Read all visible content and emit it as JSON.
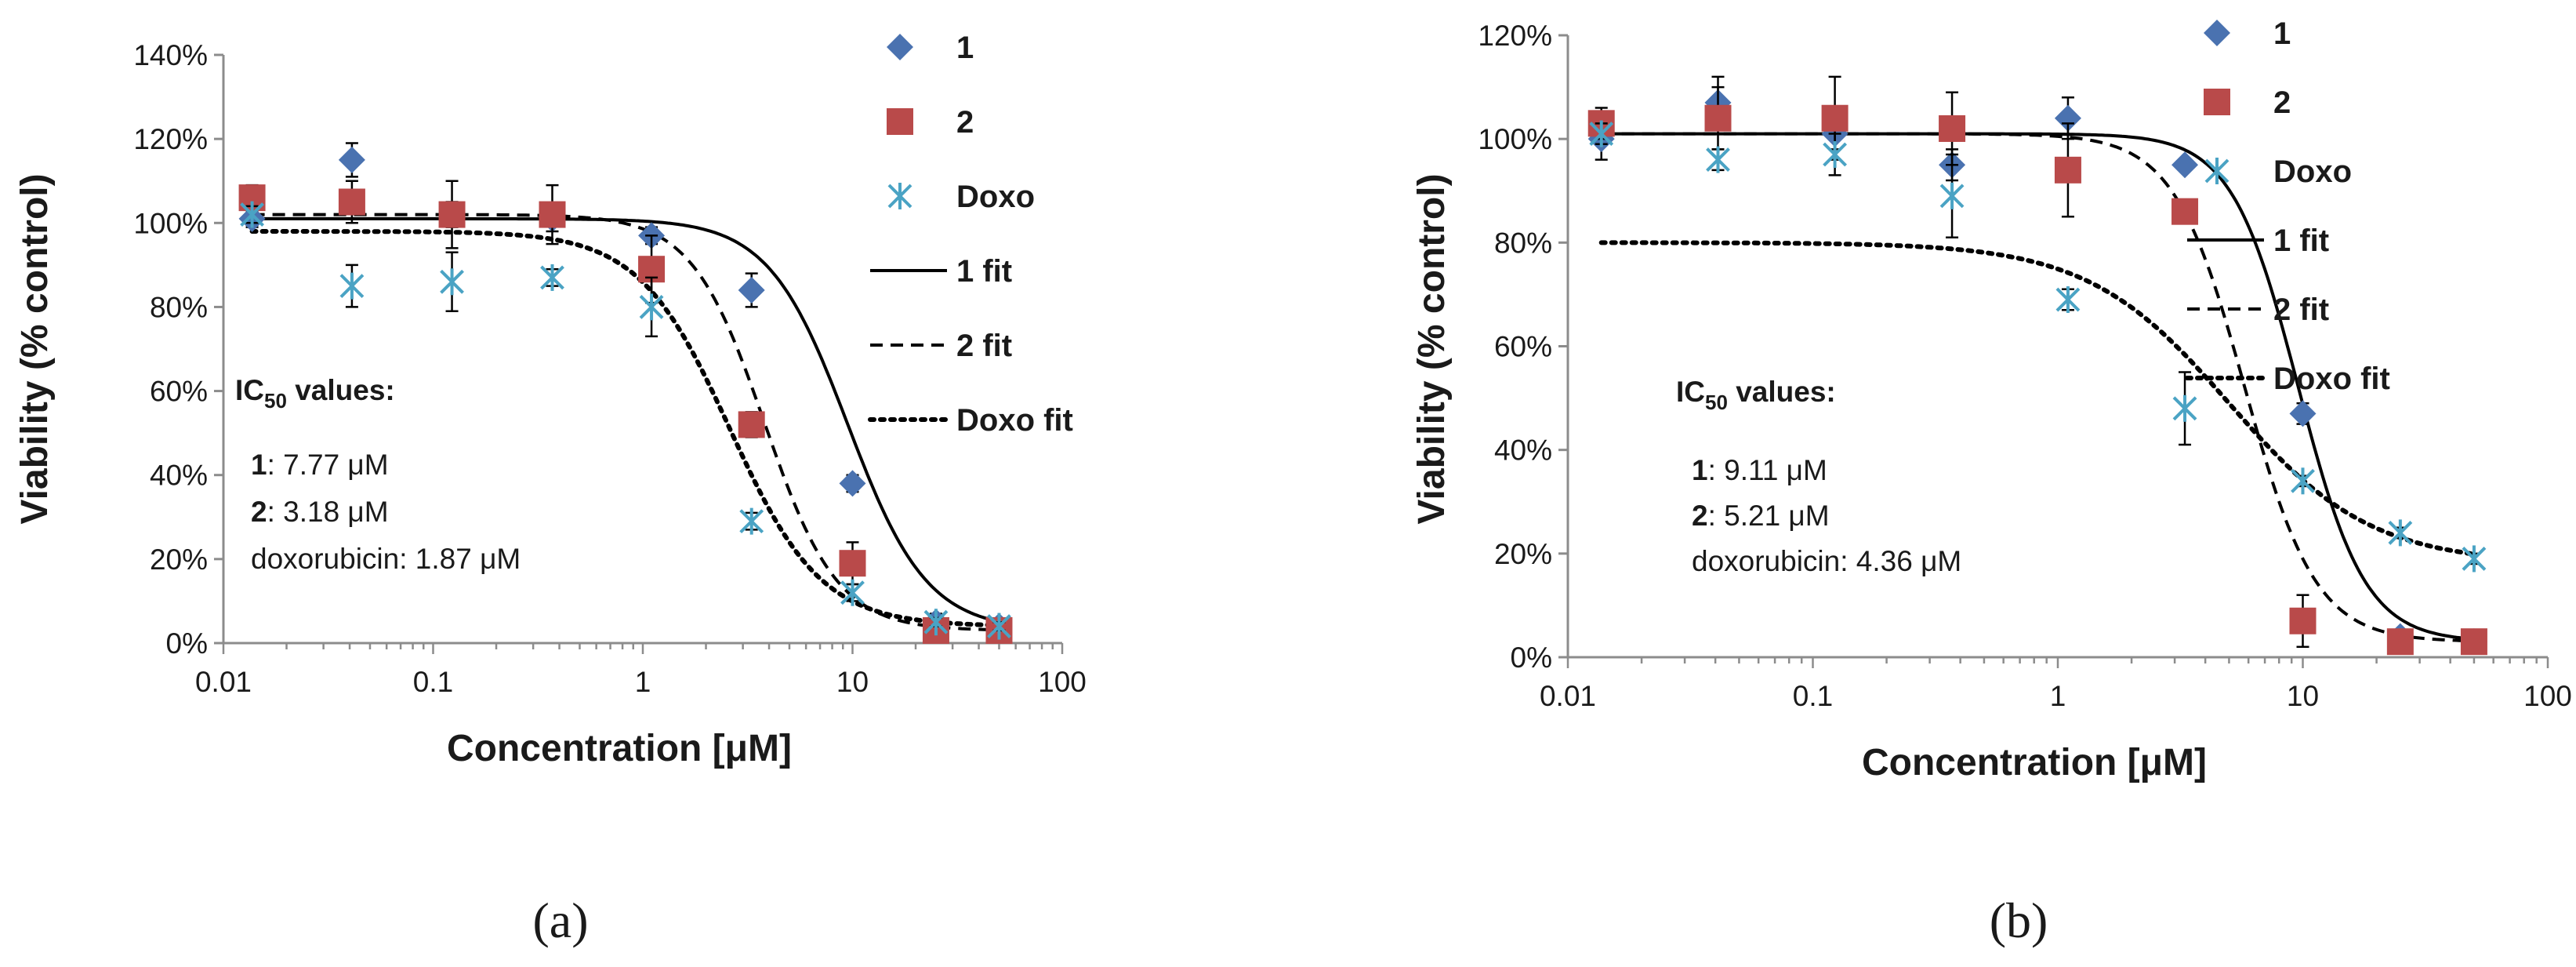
{
  "colors": {
    "compound1": "#4a72b0",
    "compound2": "#b94a4a",
    "doxo": "#4aa3c4",
    "fit": "#000000",
    "axis": "#8c8c8c",
    "errorbar": "#000000"
  },
  "chart_data": [
    {
      "type": "scatter",
      "panel_label": "(a)",
      "xlabel": "Concentration [μM]",
      "ylabel": "Viability (% control)",
      "xscale": "log",
      "xlim": [
        0.01,
        100
      ],
      "ylim": [
        0,
        140
      ],
      "xticks": [
        0.01,
        0.1,
        1,
        10,
        100
      ],
      "xtick_labels": [
        "0.01",
        "0.1",
        "1",
        "10",
        "100"
      ],
      "yticks": [
        0,
        20,
        40,
        60,
        80,
        100,
        120,
        140
      ],
      "ytick_labels": [
        "0%",
        "20%",
        "40%",
        "60%",
        "80%",
        "100%",
        "120%",
        "140%"
      ],
      "legend": [
        "1",
        "2",
        "Doxo",
        "1 fit",
        "2 fit",
        "Doxo fit"
      ],
      "ic50": {
        "title_main": "IC",
        "title_sub": "50",
        "title_rest": " values:",
        "rows": [
          {
            "key": "1",
            "text": ": 7.77 μM"
          },
          {
            "key": "2",
            "text": ": 3.18 μM"
          },
          {
            "key": "doxorubicin: 1.87 μM",
            "text": ""
          }
        ]
      },
      "series": [
        {
          "name": "1",
          "marker": "diamond",
          "x": [
            0.0137,
            0.041,
            0.123,
            0.37,
            1.1,
            3.3,
            10,
            25,
            50
          ],
          "y": [
            101,
            115,
            102,
            101,
            97,
            84,
            38,
            5,
            4
          ],
          "err": [
            2,
            4,
            3,
            3,
            2,
            4,
            2,
            2,
            1
          ]
        },
        {
          "name": "2",
          "marker": "square",
          "x": [
            0.0137,
            0.041,
            0.123,
            0.37,
            1.1,
            3.3,
            10,
            25,
            50
          ],
          "y": [
            106,
            105,
            102,
            102,
            89,
            52,
            19,
            3,
            3
          ],
          "err": [
            3,
            5,
            8,
            7,
            8,
            3,
            5,
            2,
            1
          ]
        },
        {
          "name": "Doxo",
          "marker": "asterisk",
          "x": [
            0.0137,
            0.041,
            0.123,
            0.37,
            1.1,
            3.3,
            10,
            25,
            50
          ],
          "y": [
            102,
            85,
            86,
            87,
            80,
            29,
            12,
            5,
            4
          ],
          "err": [
            2,
            5,
            7,
            2,
            7,
            2,
            2,
            1,
            1
          ]
        }
      ],
      "fits": [
        {
          "name": "1 fit",
          "style": "solid",
          "top": 101,
          "bottom": 3,
          "ec50": 9.5,
          "hill": 2.3
        },
        {
          "name": "2 fit",
          "style": "dashed",
          "top": 102,
          "bottom": 3,
          "ec50": 3.8,
          "hill": 2.5
        },
        {
          "name": "Doxo fit",
          "style": "dotted",
          "top": 98,
          "bottom": 4,
          "ec50": 2.6,
          "hill": 2.0
        }
      ]
    },
    {
      "type": "scatter",
      "panel_label": "(b)",
      "xlabel": "Concentration [μM]",
      "ylabel": "Viability (% control)",
      "xscale": "log",
      "xlim": [
        0.01,
        100
      ],
      "ylim": [
        0,
        120
      ],
      "xticks": [
        0.01,
        0.1,
        1,
        10,
        100
      ],
      "xtick_labels": [
        "0.01",
        "0.1",
        "1",
        "10",
        "100"
      ],
      "yticks": [
        0,
        20,
        40,
        60,
        80,
        100,
        120
      ],
      "ytick_labels": [
        "0%",
        "20%",
        "40%",
        "60%",
        "80%",
        "100%",
        "120%"
      ],
      "legend": [
        "1",
        "2",
        "Doxo",
        "1 fit",
        "2 fit",
        "Doxo fit"
      ],
      "ic50": {
        "title_main": "IC",
        "title_sub": "50",
        "title_rest": " values:",
        "rows": [
          {
            "key": "1",
            "text": ": 9.11 μM"
          },
          {
            "key": "2",
            "text": ": 5.21 μM"
          },
          {
            "key": "doxorubicin: 4.36 μM",
            "text": ""
          }
        ]
      },
      "series": [
        {
          "name": "1",
          "marker": "diamond",
          "x": [
            0.0137,
            0.041,
            0.123,
            0.37,
            1.1,
            3.3,
            10,
            25,
            50
          ],
          "y": [
            100,
            107,
            101,
            95,
            104,
            95,
            47,
            4,
            3
          ],
          "err": [
            4,
            5,
            3,
            3,
            4,
            1,
            2,
            1,
            1
          ]
        },
        {
          "name": "2",
          "marker": "square",
          "x": [
            0.0137,
            0.041,
            0.123,
            0.37,
            1.1,
            3.3,
            10,
            25,
            50
          ],
          "y": [
            103,
            104,
            104,
            102,
            94,
            86,
            7,
            3,
            3
          ],
          "err": [
            3,
            6,
            8,
            7,
            9,
            2,
            5,
            1,
            1
          ]
        },
        {
          "name": "Doxo",
          "marker": "asterisk",
          "x": [
            0.0137,
            0.041,
            0.123,
            0.37,
            1.1,
            3.3,
            10,
            25,
            50
          ],
          "y": [
            101,
            96,
            97,
            89,
            69,
            48,
            34,
            24,
            19
          ],
          "err": [
            2,
            2,
            4,
            8,
            2,
            7,
            1,
            1,
            1
          ]
        }
      ],
      "fits": [
        {
          "name": "1 fit",
          "style": "solid",
          "top": 101,
          "bottom": 3,
          "ec50": 9.6,
          "hill": 3.2
        },
        {
          "name": "2 fit",
          "style": "dashed",
          "top": 101,
          "bottom": 3,
          "ec50": 5.8,
          "hill": 3.0
        },
        {
          "name": "Doxo fit",
          "style": "dotted",
          "top": 80,
          "bottom": 18,
          "ec50": 5.0,
          "hill": 1.5
        }
      ]
    }
  ]
}
